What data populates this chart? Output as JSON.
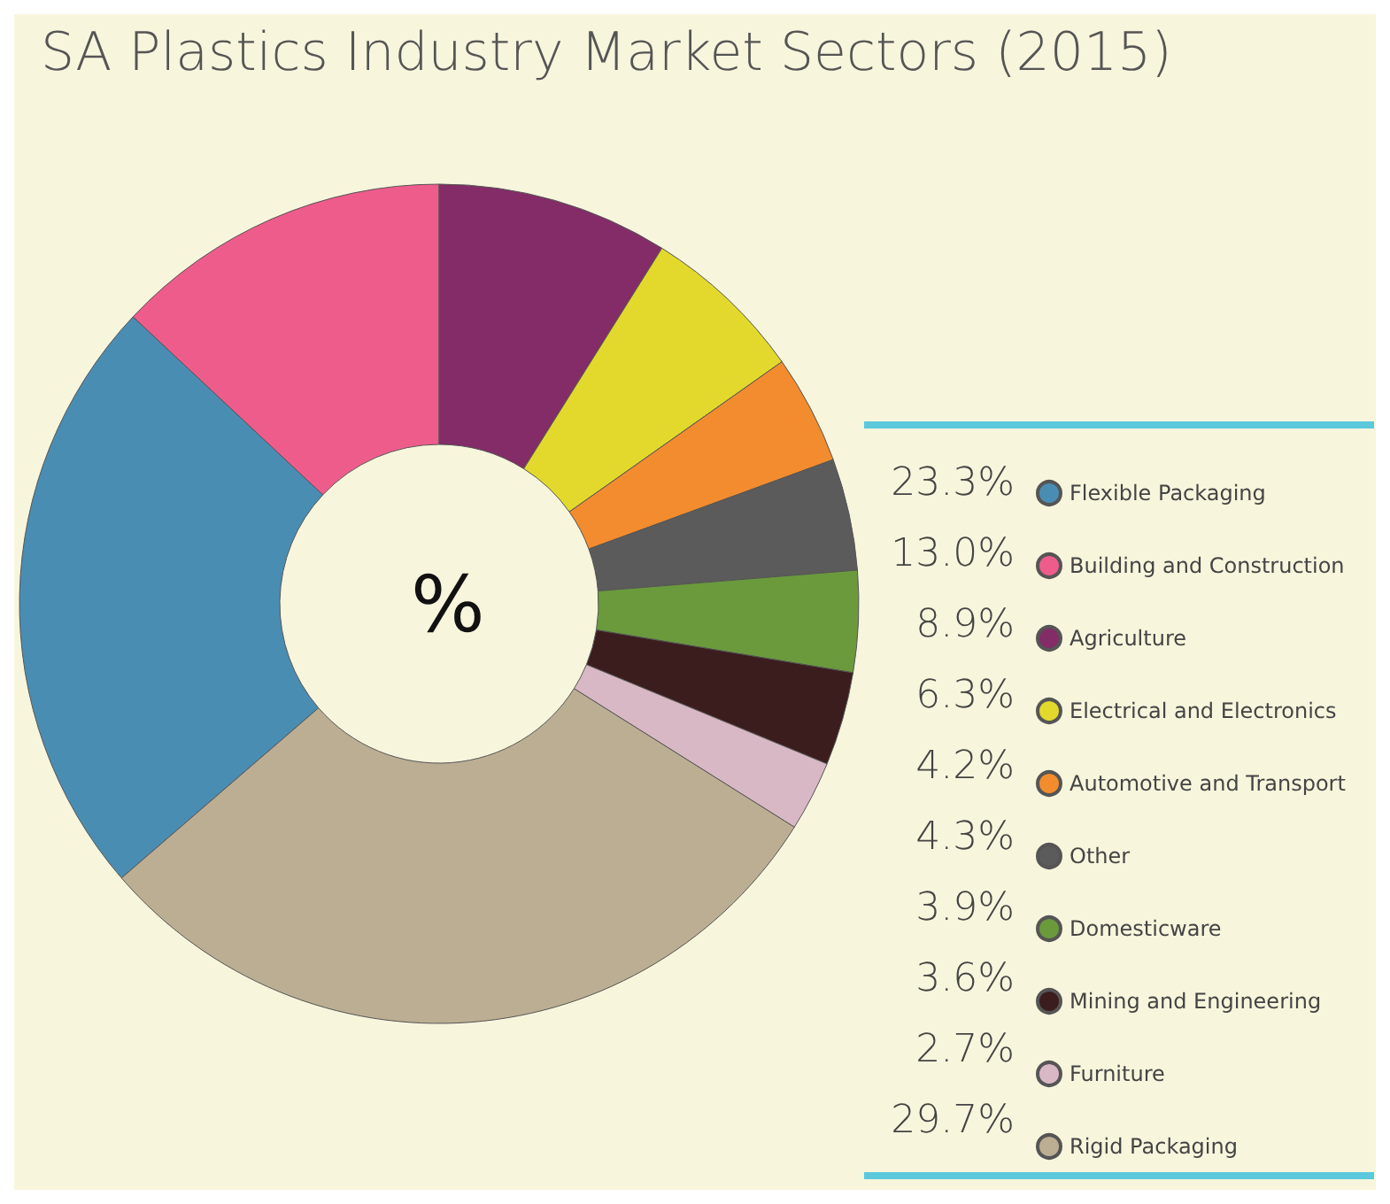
{
  "chart_data": {
    "type": "donut",
    "title": "SA Plastics Industry Market Sectors (2015)",
    "categories": [
      "Flexible Packaging",
      "Building and Construction",
      "Agriculture",
      "Electrical and Electronics",
      "Automotive and Transport",
      "Other",
      "Domesticware",
      "Mining and Engineering",
      "Furniture",
      "Rigid Packaging"
    ],
    "values": [
      23.3,
      13.0,
      8.9,
      6.3,
      4.2,
      4.3,
      3.9,
      3.6,
      2.7,
      29.7
    ],
    "value_labels": [
      "23.3%",
      "13.0%",
      "8.9%",
      "6.3%",
      "4.2%",
      "4.3%",
      "3.9%",
      "3.6%",
      "2.7%",
      "29.7%"
    ],
    "colors": [
      "#4a8db3",
      "#ee5c8c",
      "#832c68",
      "#e2d92c",
      "#f28c2e",
      "#5b5b5b",
      "#6a9a3c",
      "#3b1d1d",
      "#d8b8c4",
      "#bcae93"
    ],
    "annotations": [
      "%"
    ],
    "legend": "right"
  }
}
